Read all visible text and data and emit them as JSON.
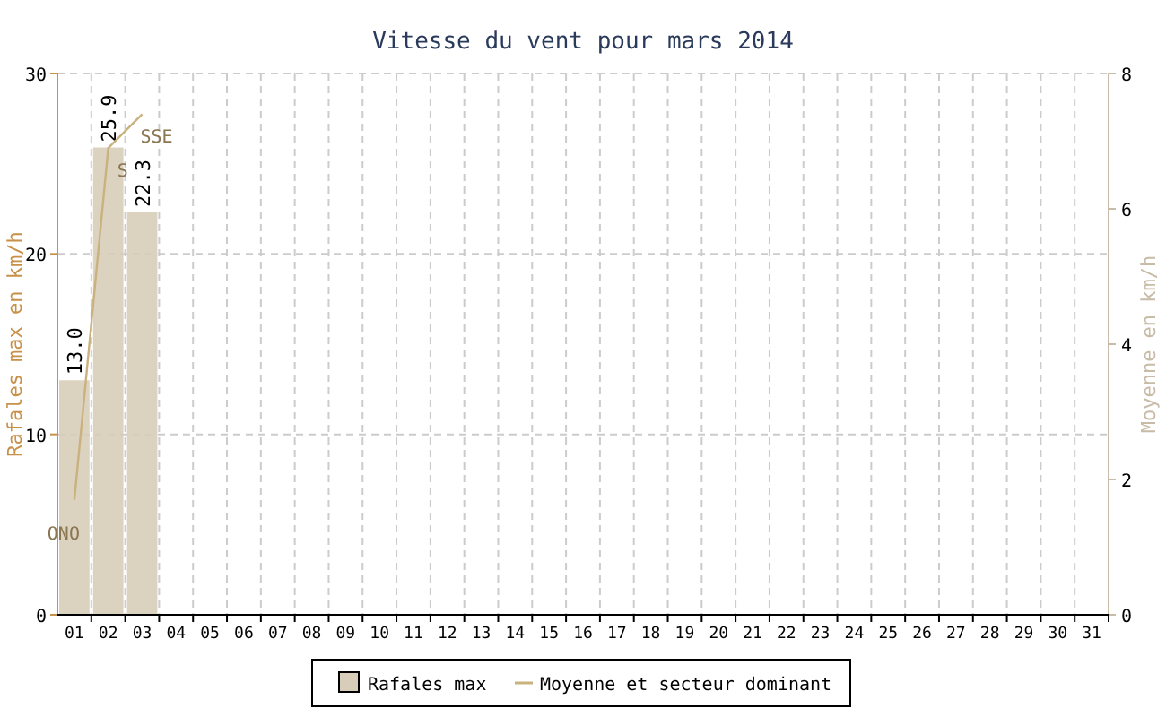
{
  "chart_data": {
    "type": "bar",
    "title": "Vitesse du vent pour mars 2014",
    "ylabel": "Rafales max en km/h",
    "y2label": "Moyenne en km/h",
    "categories": [
      "01",
      "02",
      "03",
      "04",
      "05",
      "06",
      "07",
      "08",
      "09",
      "10",
      "11",
      "12",
      "13",
      "14",
      "15",
      "16",
      "17",
      "18",
      "19",
      "20",
      "21",
      "22",
      "23",
      "24",
      "25",
      "26",
      "27",
      "28",
      "29",
      "30",
      "31"
    ],
    "series": [
      {
        "name": "Rafales max",
        "color": "#d8cdb9",
        "values": [
          13.0,
          25.9,
          22.3,
          null,
          null,
          null,
          null,
          null,
          null,
          null,
          null,
          null,
          null,
          null,
          null,
          null,
          null,
          null,
          null,
          null,
          null,
          null,
          null,
          null,
          null,
          null,
          null,
          null,
          null,
          null,
          null
        ],
        "value_labels": [
          "13.0",
          "25.9",
          "22.3",
          null,
          null,
          null,
          null,
          null,
          null,
          null,
          null,
          null,
          null,
          null,
          null,
          null,
          null,
          null,
          null,
          null,
          null,
          null,
          null,
          null,
          null,
          null,
          null,
          null,
          null,
          null,
          null
        ]
      },
      {
        "name": "Moyenne et secteur dominant",
        "type": "line",
        "axis": "y2",
        "color": "#c9b27e",
        "values": [
          1.7,
          6.9,
          7.4,
          null,
          null,
          null,
          null,
          null,
          null,
          null,
          null,
          null,
          null,
          null,
          null,
          null,
          null,
          null,
          null,
          null,
          null,
          null,
          null,
          null,
          null,
          null,
          null,
          null,
          null,
          null,
          null
        ]
      }
    ],
    "annotations": [
      "ONO",
      "S",
      "SSE"
    ],
    "ylim": [
      0,
      30
    ],
    "yticks": [
      0,
      10,
      20,
      30
    ],
    "y2lim": [
      0,
      8
    ],
    "y2ticks": [
      0,
      2,
      4,
      6,
      8
    ],
    "grid": true,
    "legend": "bottom"
  }
}
